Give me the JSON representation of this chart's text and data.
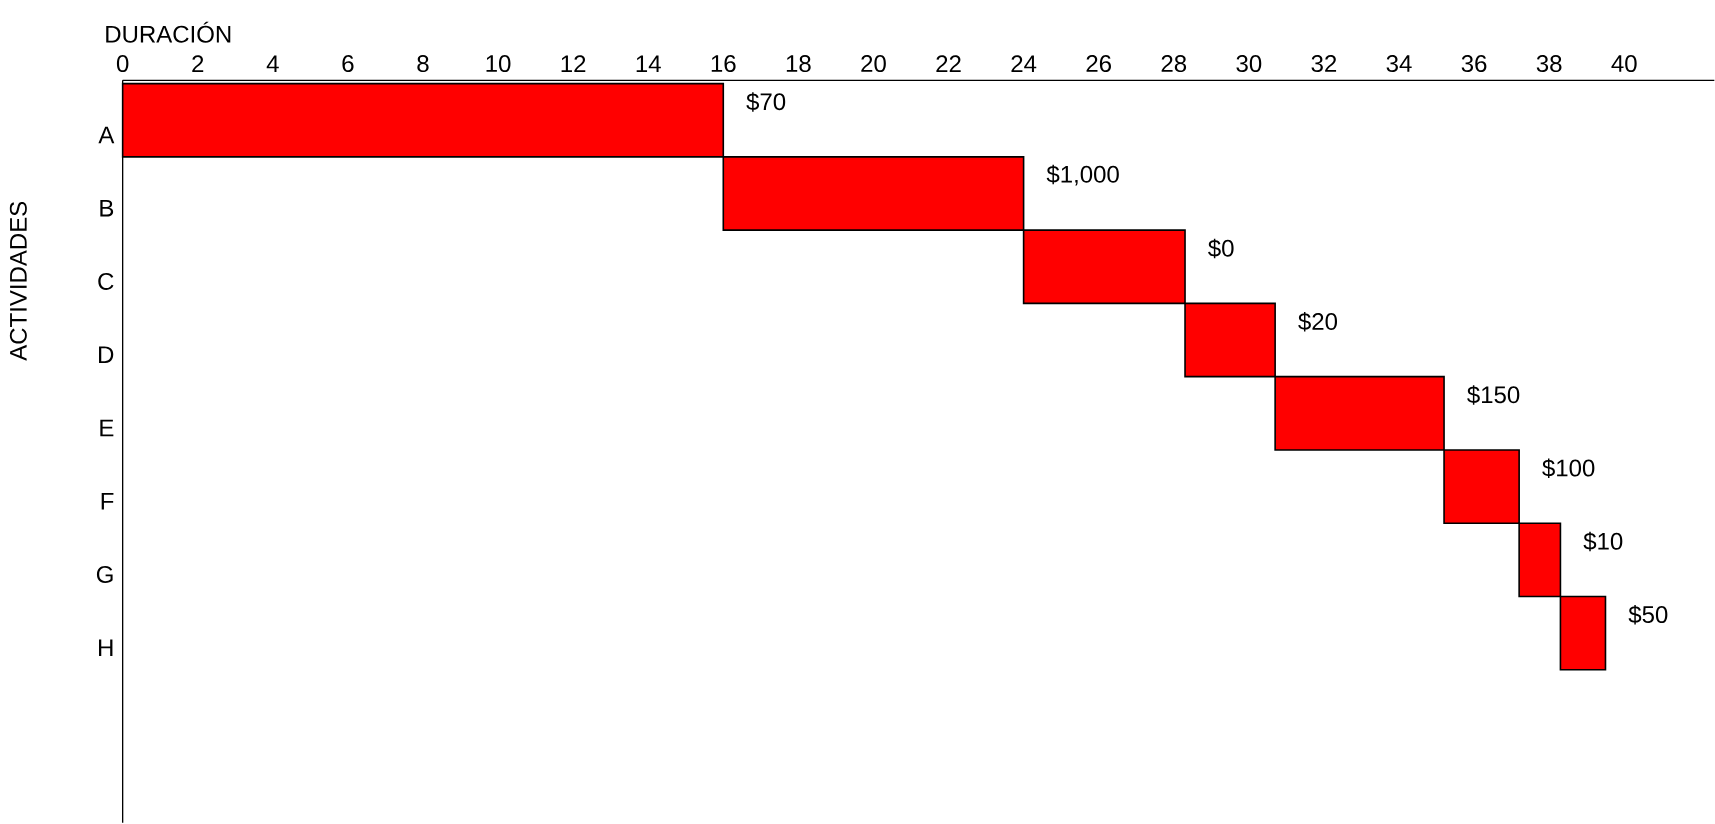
{
  "chart_data": {
    "type": "bar",
    "orientation": "horizontal",
    "xlabel": "DURACIÓN",
    "ylabel": "ACTIVIDADES",
    "categories": [
      "A",
      "B",
      "C",
      "D",
      "E",
      "F",
      "G",
      "H"
    ],
    "base": [
      0,
      16,
      24,
      28.3,
      30.7,
      35.2,
      37.2,
      38.3
    ],
    "values": [
      16,
      8,
      4.3,
      2.4,
      4.5,
      2.0,
      1.1,
      1.2
    ],
    "color": "#ff0000",
    "xlim": [
      0,
      42.4
    ],
    "xticks": [
      0,
      2,
      4,
      6,
      8,
      10,
      12,
      14,
      16,
      18,
      20,
      22,
      24,
      26,
      28,
      30,
      32,
      34,
      36,
      38,
      40
    ],
    "grid": false,
    "annotations": [
      {
        "text": "$70",
        "x": 16,
        "y": "A"
      },
      {
        "text": "$1,000",
        "x": 24,
        "y": "B"
      },
      {
        "text": "$0",
        "x": 28.3,
        "y": "C"
      },
      {
        "text": "$20",
        "x": 30.7,
        "y": "D"
      },
      {
        "text": "$150",
        "x": 35.2,
        "y": "E"
      },
      {
        "text": "$100",
        "x": 37.2,
        "y": "F"
      },
      {
        "text": "$10",
        "x": 38.3,
        "y": "G"
      },
      {
        "text": "$50",
        "x": 39.5,
        "y": "H"
      }
    ]
  }
}
